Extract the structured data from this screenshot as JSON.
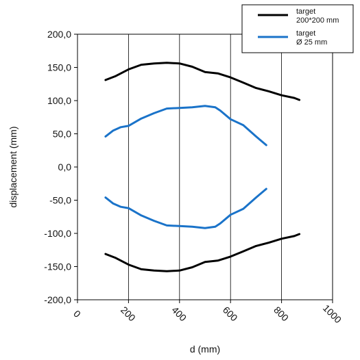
{
  "chart_data": {
    "type": "line",
    "title": "",
    "xlabel": "d (mm)",
    "ylabel": "displacement (mm)",
    "xlim": [
      0,
      1000
    ],
    "ylim": [
      -200,
      200
    ],
    "x_ticks": [
      0,
      200,
      400,
      600,
      800,
      1000
    ],
    "x_tick_labels": [
      "0",
      "200",
      "400",
      "600",
      "800",
      "1000"
    ],
    "y_ticks": [
      200,
      150,
      100,
      50,
      0,
      -50,
      -100,
      -150,
      -200
    ],
    "y_tick_labels": [
      "200,0",
      "150,0",
      "100,0",
      "50,0",
      "0,0",
      "-50,0",
      "-100,0",
      "-150,0",
      "-200,0"
    ],
    "grid": "vertical",
    "legend_position": "top-right",
    "legend": [
      {
        "series": "target_200",
        "line1": "target",
        "line2": "200*200 mm",
        "color": "#000000"
      },
      {
        "series": "target_25",
        "line1": "target",
        "line2": "Ø 25 mm",
        "color": "#1a73c9"
      }
    ],
    "series": [
      {
        "id": "target_200",
        "part": "upper",
        "color": "#000000",
        "x": [
          110,
          150,
          200,
          250,
          300,
          350,
          400,
          450,
          500,
          550,
          600,
          650,
          700,
          750,
          800,
          850,
          870
        ],
        "y": [
          131,
          137,
          147,
          154,
          156,
          157,
          156,
          151,
          143,
          141,
          135,
          127,
          119,
          114,
          108,
          104,
          101
        ]
      },
      {
        "id": "target_200",
        "part": "lower",
        "color": "#000000",
        "x": [
          110,
          150,
          200,
          250,
          300,
          350,
          400,
          450,
          500,
          550,
          600,
          650,
          700,
          750,
          800,
          850,
          870
        ],
        "y": [
          -131,
          -137,
          -147,
          -154,
          -156,
          -157,
          -156,
          -151,
          -143,
          -141,
          -135,
          -127,
          -119,
          -114,
          -108,
          -104,
          -101
        ]
      },
      {
        "id": "target_25",
        "part": "upper",
        "color": "#1a73c9",
        "x": [
          110,
          140,
          170,
          200,
          250,
          300,
          350,
          400,
          450,
          500,
          540,
          560,
          600,
          650,
          700,
          740
        ],
        "y": [
          46,
          55,
          60,
          62,
          73,
          81,
          88,
          89,
          90,
          92,
          90,
          85,
          72,
          63,
          46,
          33
        ]
      },
      {
        "id": "target_25",
        "part": "lower",
        "color": "#1a73c9",
        "x": [
          110,
          140,
          170,
          200,
          250,
          300,
          350,
          400,
          450,
          500,
          540,
          560,
          600,
          650,
          700,
          740
        ],
        "y": [
          -46,
          -55,
          -60,
          -62,
          -73,
          -81,
          -88,
          -89,
          -90,
          -92,
          -90,
          -85,
          -72,
          -63,
          -46,
          -33
        ]
      }
    ]
  }
}
